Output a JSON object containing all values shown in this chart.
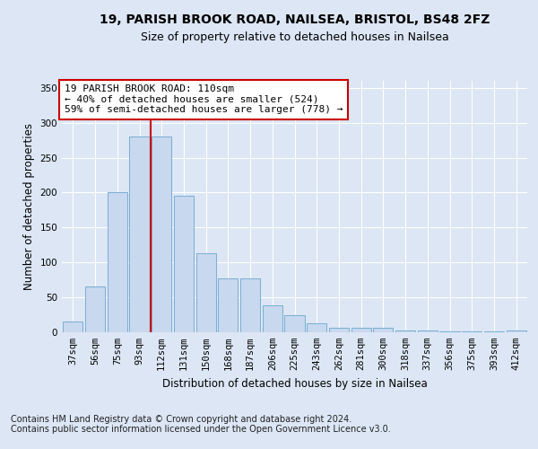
{
  "title1": "19, PARISH BROOK ROAD, NAILSEA, BRISTOL, BS48 2FZ",
  "title2": "Size of property relative to detached houses in Nailsea",
  "xlabel": "Distribution of detached houses by size in Nailsea",
  "ylabel": "Number of detached properties",
  "categories": [
    "37sqm",
    "56sqm",
    "75sqm",
    "93sqm",
    "112sqm",
    "131sqm",
    "150sqm",
    "168sqm",
    "187sqm",
    "206sqm",
    "225sqm",
    "243sqm",
    "262sqm",
    "281sqm",
    "300sqm",
    "318sqm",
    "337sqm",
    "356sqm",
    "375sqm",
    "393sqm",
    "412sqm"
  ],
  "values": [
    15,
    65,
    200,
    280,
    280,
    195,
    113,
    77,
    77,
    38,
    25,
    13,
    7,
    7,
    7,
    3,
    2,
    1,
    1,
    1,
    2
  ],
  "bar_color": "#c8d8ee",
  "bar_edge_color": "#7aaed4",
  "vline_color": "#cc0000",
  "vline_x": 3.5,
  "annotation_text": "19 PARISH BROOK ROAD: 110sqm\n← 40% of detached houses are smaller (524)\n59% of semi-detached houses are larger (778) →",
  "annotation_box_color": "#ffffff",
  "annotation_box_edge_color": "#cc0000",
  "ylim": [
    0,
    360
  ],
  "yticks": [
    0,
    50,
    100,
    150,
    200,
    250,
    300,
    350
  ],
  "footer": "Contains HM Land Registry data © Crown copyright and database right 2024.\nContains public sector information licensed under the Open Government Licence v3.0.",
  "background_color": "#dce6f5",
  "plot_bg_color": "#dce6f5",
  "grid_color": "#ffffff",
  "title_fontsize": 10,
  "subtitle_fontsize": 9,
  "tick_fontsize": 7.5,
  "ylabel_fontsize": 8.5,
  "xlabel_fontsize": 8.5,
  "footer_fontsize": 7,
  "annot_fontsize": 8
}
